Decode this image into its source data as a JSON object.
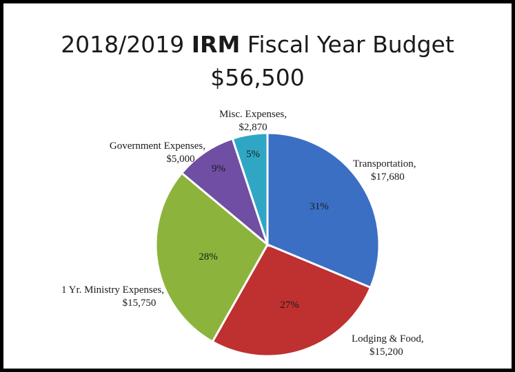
{
  "title": {
    "prefix": "2018/2019 ",
    "bold": "IRM",
    "suffix": " Fiscal Year Budget"
  },
  "subtitle": "$56,500",
  "chart_data": {
    "type": "pie",
    "title": "2018/2019 IRM Fiscal Year Budget",
    "subtitle": "$56,500",
    "slices": [
      {
        "name": "Transportation,",
        "amount": "$17,680",
        "value": 17680,
        "percent": "31%",
        "color": "#3b6fc4"
      },
      {
        "name": "Lodging & Food,",
        "amount": "$15,200",
        "value": 15200,
        "percent": "27%",
        "color": "#bf3030"
      },
      {
        "name": "1 Yr. Ministry Expenses,",
        "amount": "$15,750",
        "value": 15750,
        "percent": "28%",
        "color": "#8cb43c"
      },
      {
        "name": "Government Expenses,",
        "amount": "$5,000",
        "value": 5000,
        "percent": "9%",
        "color": "#6f4ea3"
      },
      {
        "name": "Misc. Expenses,",
        "amount": "$2,870",
        "value": 2870,
        "percent": "5%",
        "color": "#2fa7c4"
      }
    ]
  }
}
